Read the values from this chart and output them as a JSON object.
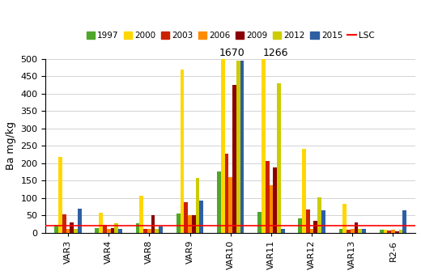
{
  "categories": [
    "VAR3",
    "VAR4",
    "VAR8",
    "VAR9",
    "VAR10",
    "VAR11",
    "VAR12",
    "VAR13",
    "R2-6"
  ],
  "series": {
    "1997": [
      22,
      13,
      27,
      55,
      176,
      60,
      40,
      10,
      8
    ],
    "2000": [
      217,
      57,
      107,
      470,
      500,
      500,
      240,
      83,
      8
    ],
    "2003": [
      53,
      22,
      10,
      87,
      228,
      207,
      67,
      8,
      6
    ],
    "2006": [
      10,
      10,
      10,
      50,
      160,
      136,
      10,
      10,
      8
    ],
    "2009": [
      30,
      12,
      50,
      50,
      424,
      188,
      33,
      30,
      5
    ],
    "2012": [
      10,
      28,
      10,
      157,
      495,
      430,
      102,
      10,
      8
    ],
    "2015": [
      70,
      10,
      17,
      93,
      495,
      10,
      64,
      10,
      65
    ],
    "LSC": 20
  },
  "colors": {
    "1997": "#4EA72A",
    "2000": "#FFD700",
    "2003": "#CC2200",
    "2006": "#FF8C00",
    "2009": "#8B0000",
    "2012": "#CCCC00",
    "2015": "#2E5FA3",
    "LSC": "#FF0000"
  },
  "annotations": {
    "VAR10": "1670",
    "VAR11": "1266"
  },
  "ylabel": "Ba mg/kg",
  "ylim": [
    0,
    500
  ],
  "yticks": [
    0,
    50,
    100,
    150,
    200,
    250,
    300,
    350,
    400,
    450,
    500
  ]
}
